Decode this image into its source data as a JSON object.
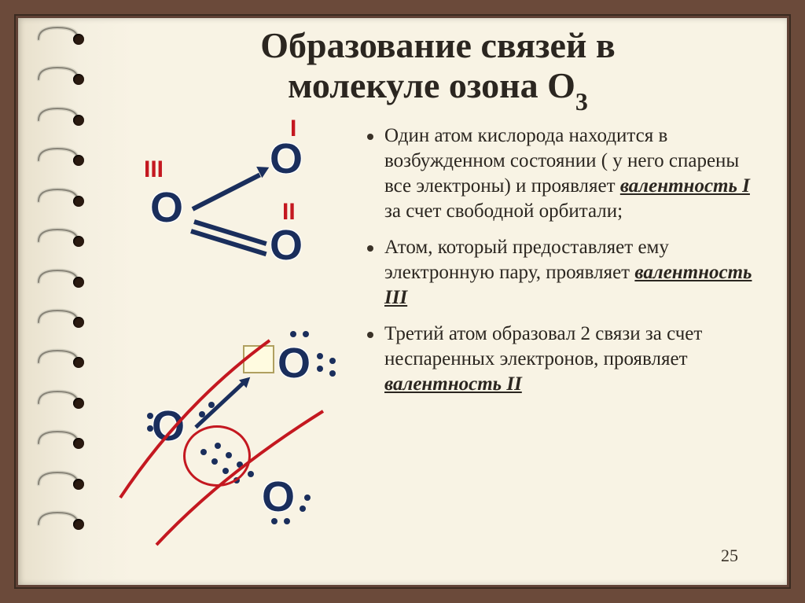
{
  "slide": {
    "title_line1": "Образование связей в",
    "title_line2_a": "молекуле озона O",
    "title_line2_sub": "3",
    "page_number": "25"
  },
  "bullets": [
    {
      "pre": "Один атом кислорода находится в возбужденном состоянии ( у него спарены все электроны) и проявляет ",
      "valency": "валентность I",
      "post": " за счет свободной орбитали;"
    },
    {
      "pre": "Атом, который предоставляет ему электронную пару, проявляет ",
      "valency": "валентность III",
      "post": ""
    },
    {
      "pre": "Третий атом образовал 2 связи за счет неспаренных электронов, проявляет ",
      "valency": "валентность II",
      "post": ""
    }
  ],
  "diagram": {
    "romans": {
      "I": "I",
      "II": "II",
      "III": "III"
    },
    "atom_label": "O",
    "colors": {
      "atom": "#1a2e5c",
      "roman": "#c41820",
      "curve": "#c41820",
      "box_fill": "#fffbe0",
      "box_border": "#b0a060"
    }
  },
  "style": {
    "frame_outer": "#6b4a3a",
    "frame_inner": "#604236",
    "page_bg": "#f8f3e4",
    "title_font_size": 46,
    "body_font_size": 25,
    "roman_font_size": 30,
    "atom_font_size": 54
  }
}
